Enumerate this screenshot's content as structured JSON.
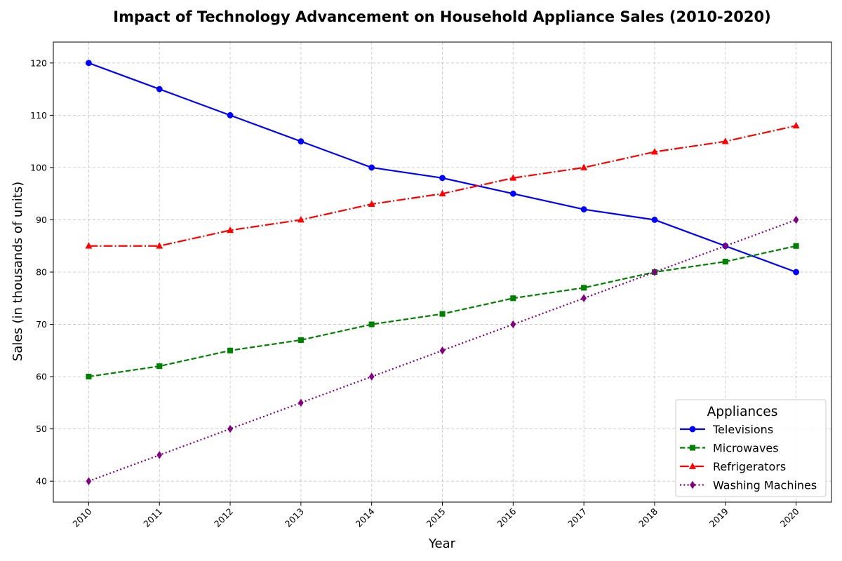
{
  "chart_data": {
    "type": "line",
    "title": "Impact of Technology Advancement on Household Appliance Sales (2010-2020)",
    "xlabel": "Year",
    "ylabel": "Sales (in thousands of units)",
    "x": [
      2010,
      2011,
      2012,
      2013,
      2014,
      2015,
      2016,
      2017,
      2018,
      2019,
      2020
    ],
    "x_tick_labels": [
      "2010",
      "2011",
      "2012",
      "2013",
      "2014",
      "2015",
      "2016",
      "2017",
      "2018",
      "2019",
      "2020"
    ],
    "y_ticks": [
      40,
      50,
      60,
      70,
      80,
      90,
      100,
      110,
      120
    ],
    "y_tick_labels": [
      "40",
      "50",
      "60",
      "70",
      "80",
      "90",
      "100",
      "110",
      "120"
    ],
    "xlim": [
      2009.5,
      2020.5
    ],
    "ylim": [
      36,
      124
    ],
    "grid": true,
    "legend": {
      "title": "Appliances",
      "position": "lower-right"
    },
    "series": [
      {
        "name": "Televisions",
        "color": "#0000ff",
        "linestyle": "solid",
        "marker": "circle",
        "values": [
          120,
          115,
          110,
          105,
          100,
          98,
          95,
          92,
          90,
          85,
          80
        ]
      },
      {
        "name": "Microwaves",
        "color": "#008000",
        "linestyle": "dashed",
        "marker": "square",
        "values": [
          60,
          62,
          65,
          67,
          70,
          72,
          75,
          77,
          80,
          82,
          85
        ]
      },
      {
        "name": "Refrigerators",
        "color": "#ff0000",
        "linestyle": "dashdot",
        "marker": "triangle",
        "values": [
          85,
          85,
          88,
          90,
          93,
          95,
          98,
          100,
          103,
          105,
          108
        ]
      },
      {
        "name": "Washing Machines",
        "color": "#800080",
        "linestyle": "dotted",
        "marker": "diamond",
        "values": [
          40,
          45,
          50,
          55,
          60,
          65,
          70,
          75,
          80,
          85,
          90
        ]
      }
    ]
  }
}
